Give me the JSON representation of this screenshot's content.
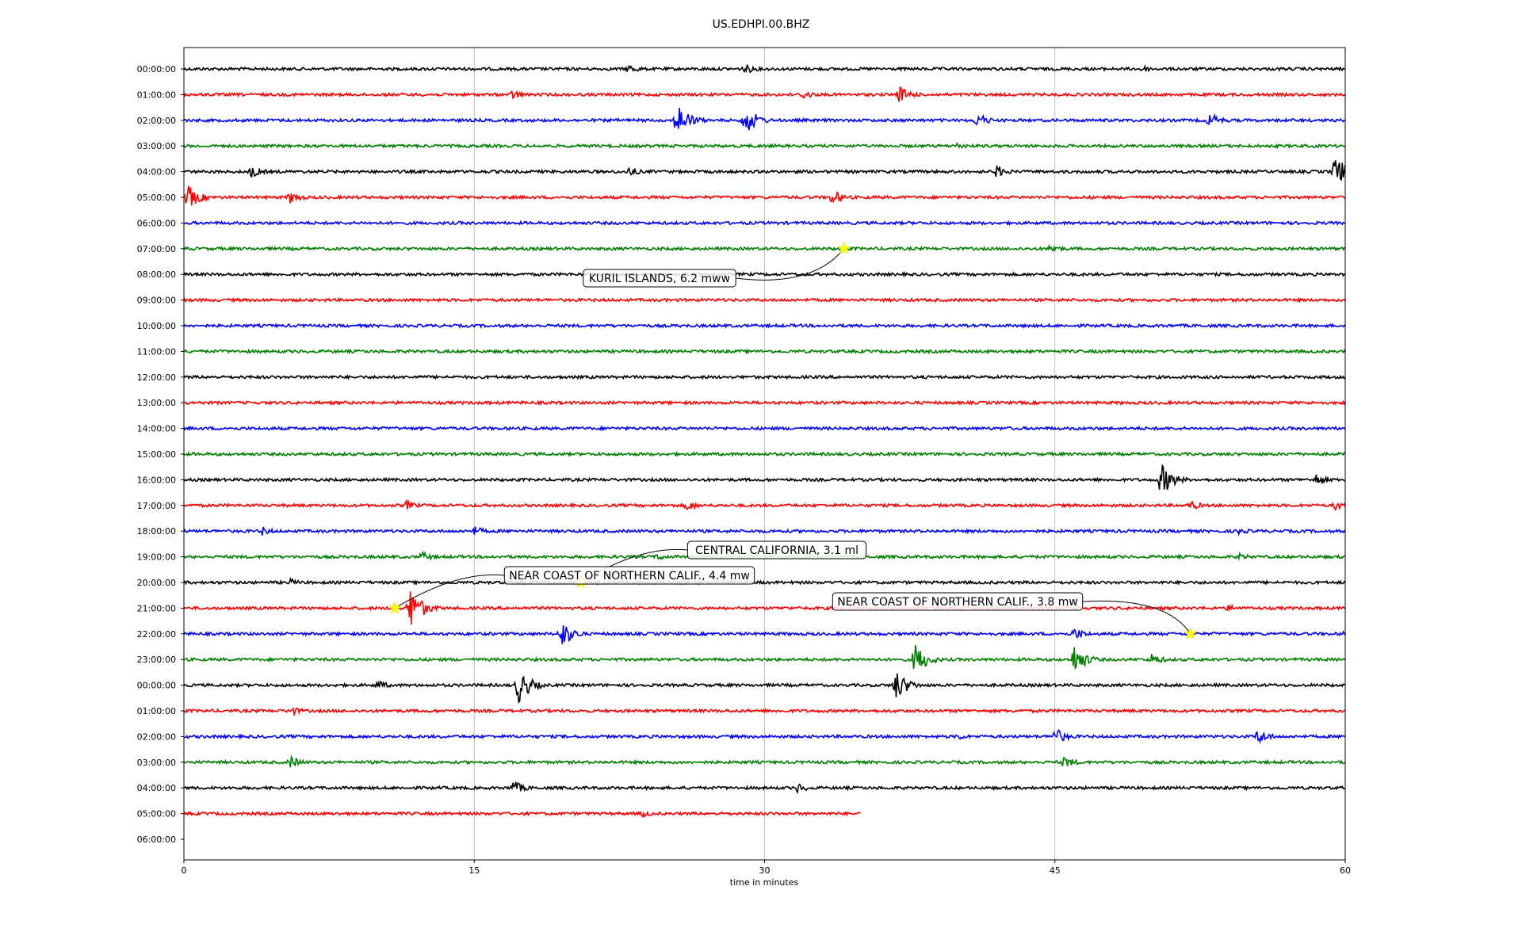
{
  "chart_data": {
    "type": "line",
    "title": "US.EDHPI.00.BHZ",
    "xlabel": "time in minutes",
    "ylabel": "",
    "xlim": [
      0,
      60
    ],
    "x_ticks": [
      0,
      15,
      30,
      45,
      60
    ],
    "grid": "vertical lines at 15, 30, 45",
    "trace_colors": [
      "#000000",
      "#ff0000",
      "#0000ff",
      "#008000"
    ],
    "event_marker_color": "#ffff00",
    "row_labels": [
      "00:00:00",
      "01:00:00",
      "02:00:00",
      "03:00:00",
      "04:00:00",
      "05:00:00",
      "06:00:00",
      "07:00:00",
      "08:00:00",
      "09:00:00",
      "10:00:00",
      "11:00:00",
      "12:00:00",
      "13:00:00",
      "14:00:00",
      "15:00:00",
      "16:00:00",
      "17:00:00",
      "18:00:00",
      "19:00:00",
      "20:00:00",
      "21:00:00",
      "22:00:00",
      "23:00:00",
      "00:00:00",
      "01:00:00",
      "02:00:00",
      "03:00:00",
      "04:00:00",
      "05:00:00",
      "06:00:00"
    ],
    "last_trace_end_minutes": 35,
    "bursts": [
      {
        "row": 0,
        "t": 23,
        "amp": 0.4
      },
      {
        "row": 0,
        "t": 29,
        "amp": 0.4
      },
      {
        "row": 0,
        "t": 49.5,
        "amp": 0.3
      },
      {
        "row": 1,
        "t": 17,
        "amp": 0.4
      },
      {
        "row": 1,
        "t": 32,
        "amp": 0.4
      },
      {
        "row": 1,
        "t": 37,
        "amp": 0.7
      },
      {
        "row": 2,
        "t": 25.5,
        "amp": 1.4
      },
      {
        "row": 2,
        "t": 29,
        "amp": 1.2
      },
      {
        "row": 2,
        "t": 41,
        "amp": 0.6
      },
      {
        "row": 2,
        "t": 53,
        "amp": 0.6
      },
      {
        "row": 3,
        "t": 40,
        "amp": 0.3
      },
      {
        "row": 4,
        "t": 3.5,
        "amp": 0.5
      },
      {
        "row": 4,
        "t": 23,
        "amp": 0.4
      },
      {
        "row": 4,
        "t": 42,
        "amp": 0.5
      },
      {
        "row": 4,
        "t": 59.5,
        "amp": 1.3
      },
      {
        "row": 5,
        "t": 0.2,
        "amp": 1.0
      },
      {
        "row": 5,
        "t": 5.5,
        "amp": 0.5
      },
      {
        "row": 5,
        "t": 33.5,
        "amp": 0.6
      },
      {
        "row": 7,
        "t": 44.8,
        "amp": 0.4
      },
      {
        "row": 16,
        "t": 50.5,
        "amp": 1.3
      },
      {
        "row": 16,
        "t": 58.5,
        "amp": 0.5
      },
      {
        "row": 17,
        "t": 11.5,
        "amp": 0.4
      },
      {
        "row": 17,
        "t": 26,
        "amp": 0.4
      },
      {
        "row": 17,
        "t": 52,
        "amp": 0.4
      },
      {
        "row": 17,
        "t": 59.5,
        "amp": 0.4
      },
      {
        "row": 18,
        "t": 4,
        "amp": 0.4
      },
      {
        "row": 18,
        "t": 15,
        "amp": 0.4
      },
      {
        "row": 18,
        "t": 54.5,
        "amp": 0.3
      },
      {
        "row": 19,
        "t": 12.3,
        "amp": 0.4
      },
      {
        "row": 19,
        "t": 24.5,
        "amp": 0.3
      },
      {
        "row": 19,
        "t": 54.5,
        "amp": 0.3
      },
      {
        "row": 20,
        "t": 5.5,
        "amp": 0.3
      },
      {
        "row": 21,
        "t": 11.7,
        "amp": 1.7
      },
      {
        "row": 21,
        "t": 54,
        "amp": 0.3
      },
      {
        "row": 22,
        "t": 19.5,
        "amp": 1.1
      },
      {
        "row": 22,
        "t": 46,
        "amp": 0.5
      },
      {
        "row": 22,
        "t": 60,
        "amp": 0.4
      },
      {
        "row": 23,
        "t": 37.8,
        "amp": 1.3
      },
      {
        "row": 23,
        "t": 46,
        "amp": 1.2
      },
      {
        "row": 23,
        "t": 50,
        "amp": 0.5
      },
      {
        "row": 24,
        "t": 17.3,
        "amp": 1.4
      },
      {
        "row": 24,
        "t": 36.8,
        "amp": 1.2
      },
      {
        "row": 24,
        "t": 10,
        "amp": 0.4
      },
      {
        "row": 25,
        "t": 5.5,
        "amp": 0.4
      },
      {
        "row": 26,
        "t": 45,
        "amp": 0.7
      },
      {
        "row": 26,
        "t": 55.5,
        "amp": 0.6
      },
      {
        "row": 26,
        "t": 40,
        "amp": 0.3
      },
      {
        "row": 27,
        "t": 5.5,
        "amp": 0.5
      },
      {
        "row": 27,
        "t": 45.5,
        "amp": 0.5
      },
      {
        "row": 28,
        "t": 17,
        "amp": 0.6
      },
      {
        "row": 28,
        "t": 31.7,
        "amp": 0.4
      },
      {
        "row": 29,
        "t": 23.7,
        "amp": 0.3
      }
    ],
    "events": [
      {
        "label": "KURIL ISLANDS, 6.2 mww",
        "row": 7,
        "t": 34.1
      },
      {
        "label": "CENTRAL CALIFORNIA, 3.1 ml",
        "row": 20,
        "t": 20.5
      },
      {
        "label": "NEAR COAST OF NORTHERN CALIF., 4.4 mw",
        "row": 21,
        "t": 10.9
      },
      {
        "label": "NEAR COAST OF NORTHERN CALIF., 3.8 mw",
        "row": 22,
        "t": 52
      }
    ]
  }
}
